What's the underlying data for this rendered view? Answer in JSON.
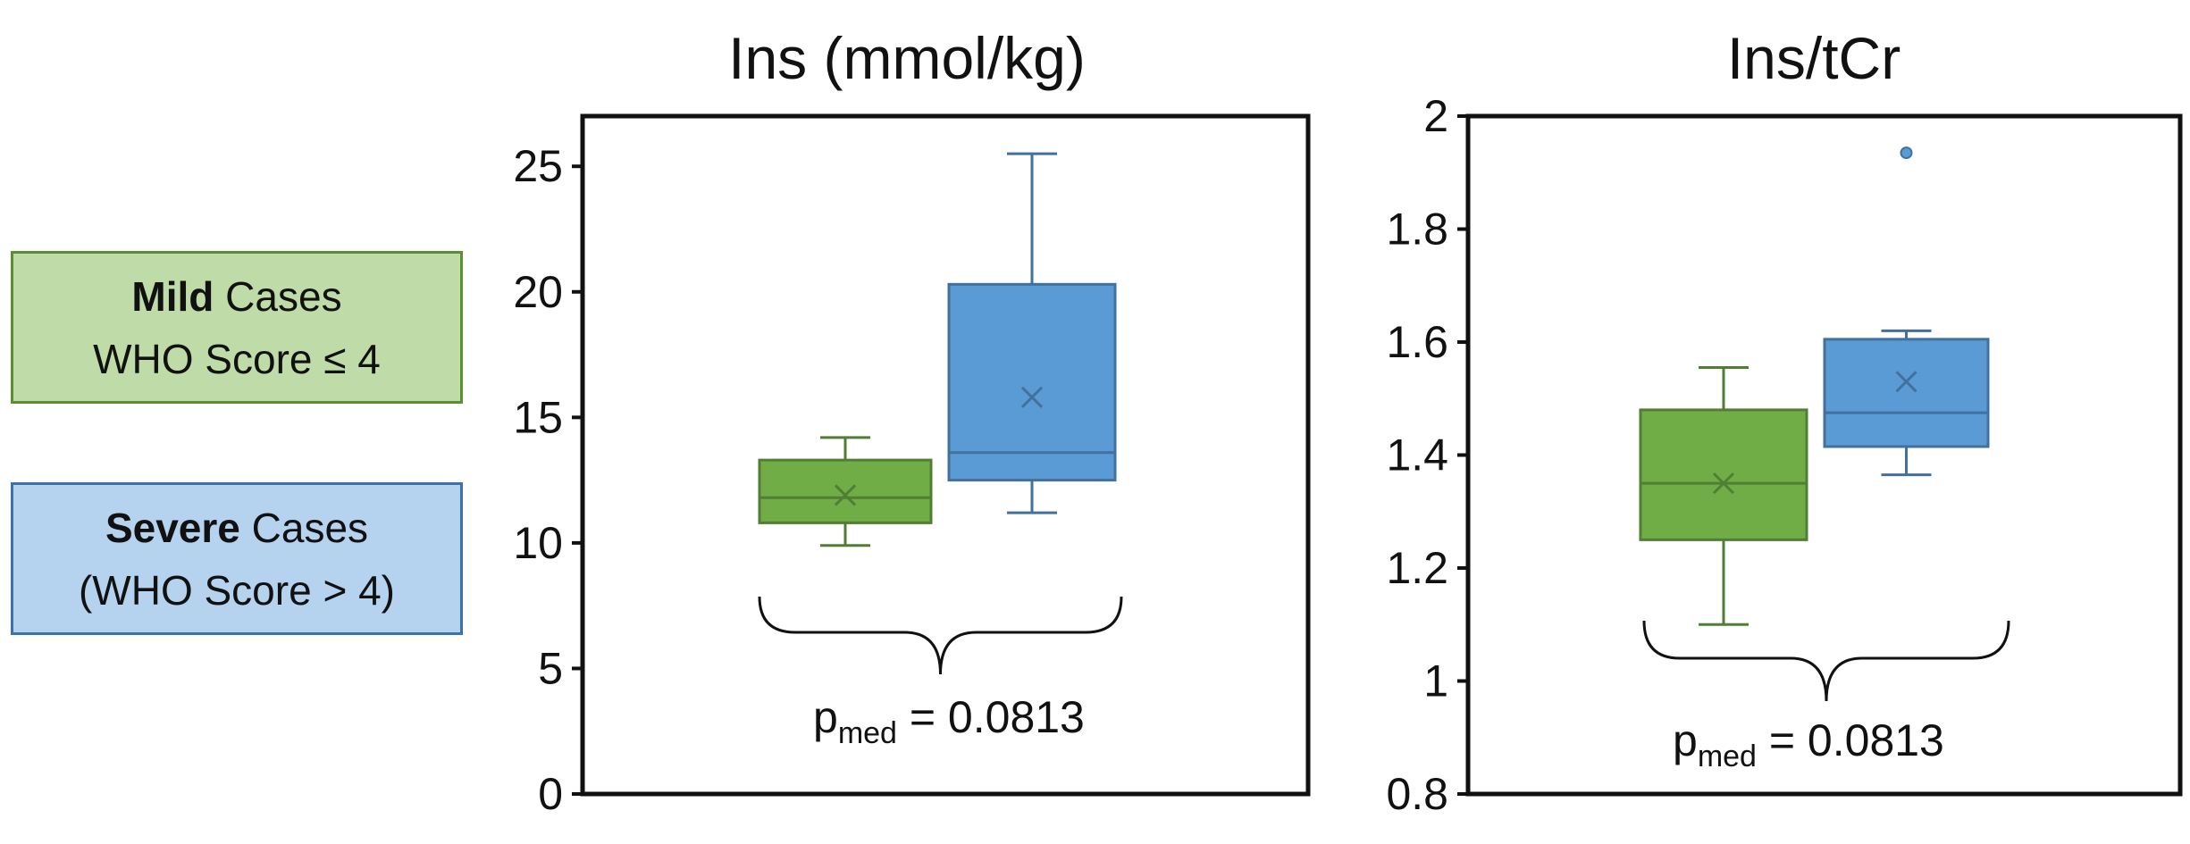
{
  "legend": {
    "mild": {
      "bold": "Mild",
      "rest": " Cases",
      "line2": "WHO Score ≤ 4",
      "fill": "#bedba8",
      "border": "#5c8f32"
    },
    "severe": {
      "bold": "Severe",
      "rest": " Cases",
      "line2": "(WHO Score > 4)",
      "fill": "#b5d2ee",
      "border": "#3d72a8"
    }
  },
  "colors": {
    "mild_box": "#70ad47",
    "mild_stroke": "#507e32",
    "severe_box": "#5b9bd5",
    "severe_stroke": "#41719c"
  },
  "chart_data": [
    {
      "type": "box",
      "title": "Ins (mmol/kg)",
      "ylim": [
        0,
        27
      ],
      "yticks": [
        0,
        5,
        10,
        15,
        20,
        25
      ],
      "tick_labels": [
        "0",
        "5",
        "10",
        "15",
        "20",
        "25"
      ],
      "grid": false,
      "series": [
        {
          "name": "Mild Cases",
          "min": 9.9,
          "q1": 10.8,
          "median": 11.8,
          "q3": 13.3,
          "max": 14.2,
          "mean": 11.9,
          "outliers": []
        },
        {
          "name": "Severe Cases",
          "min": 11.2,
          "q1": 12.5,
          "median": 13.6,
          "q3": 20.3,
          "max": 25.5,
          "mean": 15.8,
          "outliers": []
        }
      ],
      "annotation": {
        "p_base": "p",
        "p_sub": "med",
        "p_rest": " = 0.0813"
      }
    },
    {
      "type": "box",
      "title": "Ins/tCr",
      "ylim": [
        0.8,
        2.0
      ],
      "yticks": [
        0.8,
        1.0,
        1.2,
        1.4,
        1.6,
        1.8,
        2.0
      ],
      "tick_labels": [
        "0.8",
        "1",
        "1.2",
        "1.4",
        "1.6",
        "1.8",
        "2"
      ],
      "grid": false,
      "series": [
        {
          "name": "Mild Cases",
          "min": 1.1,
          "q1": 1.25,
          "median": 1.35,
          "q3": 1.48,
          "max": 1.555,
          "mean": 1.35,
          "outliers": []
        },
        {
          "name": "Severe Cases",
          "min": 1.365,
          "q1": 1.415,
          "median": 1.475,
          "q3": 1.605,
          "max": 1.62,
          "mean": 1.53,
          "outliers": [
            1.935
          ]
        }
      ],
      "annotation": {
        "p_base": "p",
        "p_sub": "med",
        "p_rest": " = 0.0813"
      }
    }
  ]
}
